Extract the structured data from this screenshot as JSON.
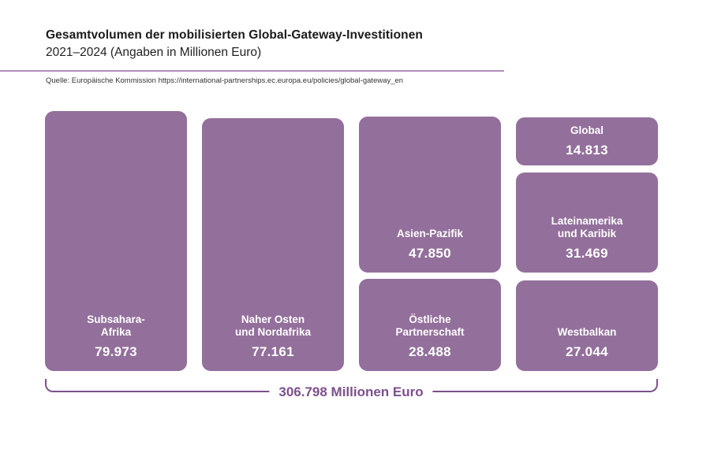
{
  "header": {
    "title": "Gesamtvolumen der mobilisierten Global-Gateway-Investitionen",
    "subtitle": "2021–2024 (Angaben in Millionen Euro)",
    "source": "Quelle: Europäische Kommission https://international-partnerships.ec.europa.eu/policies/global-gateway_en"
  },
  "blocks": [
    {
      "label": "Subsahara-\nAfrika",
      "value": "79.973"
    },
    {
      "label": "Naher Osten\nund Nordafrika",
      "value": "77.161"
    },
    {
      "label": "Asien-Pazifik",
      "value": "47.850"
    },
    {
      "label": "Östliche\nPartnerschaft",
      "value": "28.488"
    },
    {
      "label": "Global",
      "value": "14.813"
    },
    {
      "label": "Lateinamerika\nund Karibik",
      "value": "31.469"
    },
    {
      "label": "Westbalkan",
      "value": "27.044"
    }
  ],
  "total": {
    "label": "306.798 Millionen Euro"
  },
  "colors": {
    "block_fill": "#936f9b",
    "block_text": "#ffffff",
    "divider_line": "#b18fba",
    "bracket_line": "#7c5189",
    "total_text": "#7d4f8c",
    "title_text": "#1a1a1a"
  },
  "chart_data": {
    "type": "treemap",
    "title": "Gesamtvolumen der mobilisierten Global-Gateway-Investitionen",
    "subtitle": "2021–2024 (Angaben in Millionen Euro)",
    "source": "Quelle: Europäische Kommission https://international-partnerships.ec.europa.eu/policies/global-gateway_en",
    "unit": "Millionen Euro",
    "categories": [
      "Subsahara-Afrika",
      "Naher Osten und Nordafrika",
      "Asien-Pazifik",
      "Östliche Partnerschaft",
      "Global",
      "Lateinamerika und Karibik",
      "Westbalkan"
    ],
    "values": [
      79973,
      77161,
      47850,
      28488,
      14813,
      31469,
      27044
    ],
    "value_labels": [
      "79.973",
      "77.161",
      "47.850",
      "28.488",
      "14.813",
      "31.469",
      "27.044"
    ],
    "total": 306798,
    "total_label": "306.798 Millionen Euro",
    "layout_columns": [
      [
        0
      ],
      [
        1
      ],
      [
        2,
        3
      ],
      [
        4,
        5,
        6
      ]
    ],
    "legend": "none",
    "grid": false
  }
}
